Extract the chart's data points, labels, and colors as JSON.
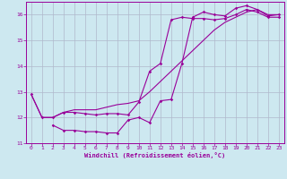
{
  "xlabel": "Windchill (Refroidissement éolien,°C)",
  "bg_color": "#cde8f0",
  "grid_color": "#b0b8cc",
  "line_color": "#990099",
  "xlim": [
    -0.5,
    23.5
  ],
  "ylim": [
    11,
    16.5
  ],
  "yticks": [
    11,
    12,
    13,
    14,
    15,
    16
  ],
  "xticks": [
    0,
    1,
    2,
    3,
    4,
    5,
    6,
    7,
    8,
    9,
    10,
    11,
    12,
    13,
    14,
    15,
    16,
    17,
    18,
    19,
    20,
    21,
    22,
    23
  ],
  "line1_x": [
    0,
    1,
    2,
    3,
    4,
    5,
    6,
    7,
    8,
    9,
    10,
    11,
    12,
    13,
    14,
    15,
    16,
    17,
    18,
    19,
    20,
    21,
    22,
    23
  ],
  "line1_y": [
    12.9,
    12.0,
    12.0,
    12.2,
    12.2,
    12.15,
    12.1,
    12.15,
    12.15,
    12.1,
    12.6,
    13.8,
    14.1,
    15.8,
    15.9,
    15.85,
    15.85,
    15.8,
    15.85,
    16.0,
    16.2,
    16.1,
    15.9,
    15.9
  ],
  "line2_x": [
    2,
    3,
    4,
    5,
    6,
    7,
    8,
    9,
    10,
    11,
    12,
    13,
    14,
    15,
    16,
    17,
    18,
    19,
    20,
    21,
    22,
    23
  ],
  "line2_y": [
    11.7,
    11.5,
    11.5,
    11.45,
    11.45,
    11.4,
    11.4,
    11.9,
    12.0,
    11.8,
    12.65,
    12.7,
    14.1,
    15.9,
    16.1,
    16.0,
    15.95,
    16.25,
    16.35,
    16.2,
    15.95,
    16.0
  ],
  "line3_x": [
    0,
    1,
    2,
    3,
    4,
    5,
    6,
    7,
    8,
    9,
    10,
    11,
    12,
    13,
    14,
    15,
    16,
    17,
    18,
    19,
    20,
    21,
    22,
    23
  ],
  "line3_y": [
    12.9,
    12.0,
    12.0,
    12.2,
    12.3,
    12.3,
    12.3,
    12.4,
    12.5,
    12.55,
    12.65,
    13.0,
    13.4,
    13.8,
    14.2,
    14.6,
    15.0,
    15.4,
    15.7,
    15.9,
    16.1,
    16.2,
    16.0,
    16.0
  ]
}
